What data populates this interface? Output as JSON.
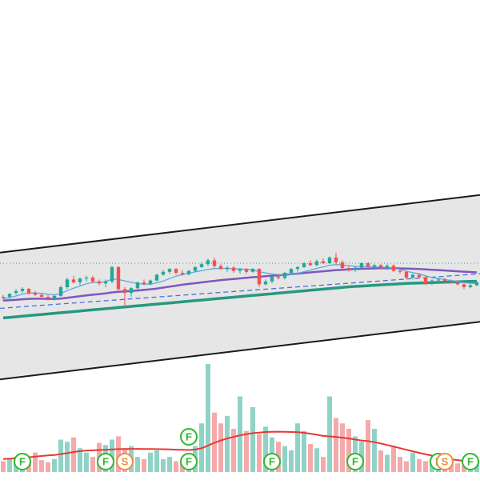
{
  "colors": {
    "background": "#ffffff",
    "channel_fill": "#e6e6e6",
    "channel_border": "#1a1a1a",
    "bull": "#26a69a",
    "bear": "#ef5350",
    "bull_volume": "#8fd3c6",
    "bear_volume": "#f5a9ab",
    "ma_fast": "#5aa9e6",
    "ma_mid": "#7e57c2",
    "ma_slow": "#26997f",
    "trend_dashed": "#4a6fe0",
    "price_line": "#26a69a",
    "volume_ma": "#e53935",
    "marker_f": "#2eb82e",
    "marker_s": "#f08c3a"
  },
  "icons": {
    "marker_f": "circle-letter-icon",
    "marker_s": "circle-letter-icon"
  },
  "chart_data": {
    "type": "candlestick",
    "title": "",
    "xlabel": "",
    "ylabel": "",
    "grid": false,
    "legend": "none",
    "ylim": [
      0,
      100
    ],
    "volume_ylim": [
      0,
      100
    ],
    "candles": [
      {
        "o": 35,
        "h": 36,
        "l": 33,
        "c": 34.5
      },
      {
        "o": 35,
        "h": 37,
        "l": 34,
        "c": 36.5
      },
      {
        "o": 37,
        "h": 39,
        "l": 36,
        "c": 38
      },
      {
        "o": 38,
        "h": 40,
        "l": 37,
        "c": 39.2
      },
      {
        "o": 39.2,
        "h": 39.5,
        "l": 36,
        "c": 36.8
      },
      {
        "o": 37,
        "h": 38,
        "l": 35.5,
        "c": 36
      },
      {
        "o": 36,
        "h": 37,
        "l": 34.5,
        "c": 35
      },
      {
        "o": 35,
        "h": 36,
        "l": 33,
        "c": 34
      },
      {
        "o": 34,
        "h": 36,
        "l": 33,
        "c": 35.5
      },
      {
        "o": 35.5,
        "h": 41,
        "l": 35,
        "c": 40
      },
      {
        "o": 40,
        "h": 45,
        "l": 39,
        "c": 44
      },
      {
        "o": 44,
        "h": 46,
        "l": 42,
        "c": 42.5
      },
      {
        "o": 42.5,
        "h": 45,
        "l": 41,
        "c": 44.5
      },
      {
        "o": 44.5,
        "h": 46,
        "l": 43,
        "c": 45
      },
      {
        "o": 45,
        "h": 46,
        "l": 42,
        "c": 43
      },
      {
        "o": 43,
        "h": 44,
        "l": 41,
        "c": 42
      },
      {
        "o": 42,
        "h": 44,
        "l": 40,
        "c": 43
      },
      {
        "o": 43,
        "h": 51,
        "l": 42,
        "c": 50.5
      },
      {
        "o": 50.5,
        "h": 51,
        "l": 38,
        "c": 39
      },
      {
        "o": 39,
        "h": 40,
        "l": 30,
        "c": 37
      },
      {
        "o": 37,
        "h": 40,
        "l": 35,
        "c": 39.5
      },
      {
        "o": 39.5,
        "h": 43,
        "l": 38,
        "c": 42.5
      },
      {
        "o": 42.5,
        "h": 44,
        "l": 41,
        "c": 41.8
      },
      {
        "o": 41.8,
        "h": 44,
        "l": 41,
        "c": 43.5
      },
      {
        "o": 43.5,
        "h": 47,
        "l": 43,
        "c": 46.5
      },
      {
        "o": 46.5,
        "h": 49,
        "l": 46,
        "c": 48
      },
      {
        "o": 48,
        "h": 50,
        "l": 47,
        "c": 49.5
      },
      {
        "o": 49.5,
        "h": 50,
        "l": 46.5,
        "c": 47.5
      },
      {
        "o": 47.5,
        "h": 49,
        "l": 46,
        "c": 46.8
      },
      {
        "o": 46.8,
        "h": 49,
        "l": 46,
        "c": 48.5
      },
      {
        "o": 48.5,
        "h": 51,
        "l": 48,
        "c": 50.5
      },
      {
        "o": 50.5,
        "h": 53,
        "l": 50,
        "c": 52
      },
      {
        "o": 52,
        "h": 55,
        "l": 51,
        "c": 54
      },
      {
        "o": 54,
        "h": 55.5,
        "l": 50,
        "c": 51
      },
      {
        "o": 51,
        "h": 52,
        "l": 49,
        "c": 49.5
      },
      {
        "o": 49.5,
        "h": 51,
        "l": 48,
        "c": 50.2
      },
      {
        "o": 50.2,
        "h": 51,
        "l": 47.5,
        "c": 48.5
      },
      {
        "o": 48.5,
        "h": 50,
        "l": 47,
        "c": 49.2
      },
      {
        "o": 49.2,
        "h": 50,
        "l": 47,
        "c": 48
      },
      {
        "o": 48,
        "h": 50,
        "l": 47.5,
        "c": 49.5
      },
      {
        "o": 49.5,
        "h": 50,
        "l": 40,
        "c": 41.5
      },
      {
        "o": 41.5,
        "h": 44,
        "l": 41,
        "c": 43
      },
      {
        "o": 43,
        "h": 46,
        "l": 42,
        "c": 45.5
      },
      {
        "o": 45.5,
        "h": 47,
        "l": 44,
        "c": 44.8
      },
      {
        "o": 44.8,
        "h": 48,
        "l": 44,
        "c": 47.5
      },
      {
        "o": 47.5,
        "h": 50,
        "l": 47,
        "c": 49.5
      },
      {
        "o": 49.5,
        "h": 51,
        "l": 48,
        "c": 50.5
      },
      {
        "o": 50.5,
        "h": 53,
        "l": 50,
        "c": 52.5
      },
      {
        "o": 52.5,
        "h": 54,
        "l": 51,
        "c": 51.5
      },
      {
        "o": 51.5,
        "h": 54.5,
        "l": 51,
        "c": 53.5
      },
      {
        "o": 53.5,
        "h": 55,
        "l": 52,
        "c": 52.5
      },
      {
        "o": 52.5,
        "h": 56,
        "l": 52,
        "c": 55.5
      },
      {
        "o": 55.5,
        "h": 58,
        "l": 52,
        "c": 53
      },
      {
        "o": 53,
        "h": 54,
        "l": 49,
        "c": 50
      },
      {
        "o": 50,
        "h": 51,
        "l": 48,
        "c": 49
      },
      {
        "o": 49,
        "h": 51,
        "l": 48,
        "c": 50.2
      },
      {
        "o": 50.2,
        "h": 53,
        "l": 49.5,
        "c": 52.5
      },
      {
        "o": 52.5,
        "h": 53,
        "l": 50,
        "c": 50.8
      },
      {
        "o": 50.8,
        "h": 52,
        "l": 50,
        "c": 51.5
      },
      {
        "o": 51.5,
        "h": 52,
        "l": 49.5,
        "c": 50.2
      },
      {
        "o": 50.2,
        "h": 52,
        "l": 49,
        "c": 51.2
      },
      {
        "o": 51.2,
        "h": 52,
        "l": 48,
        "c": 48.5
      },
      {
        "o": 48.5,
        "h": 50,
        "l": 47,
        "c": 48
      },
      {
        "o": 48,
        "h": 48.5,
        "l": 44,
        "c": 45
      },
      {
        "o": 45,
        "h": 47,
        "l": 44,
        "c": 46.5
      },
      {
        "o": 46.5,
        "h": 47,
        "l": 44.5,
        "c": 45.2
      },
      {
        "o": 45.2,
        "h": 46,
        "l": 41,
        "c": 42
      },
      {
        "o": 42,
        "h": 44,
        "l": 41,
        "c": 43.5
      },
      {
        "o": 43.5,
        "h": 45,
        "l": 43,
        "c": 44
      },
      {
        "o": 44,
        "h": 45,
        "l": 42.5,
        "c": 43.2
      },
      {
        "o": 43.2,
        "h": 44,
        "l": 42,
        "c": 42.5
      },
      {
        "o": 42.5,
        "h": 43,
        "l": 41,
        "c": 41.5
      },
      {
        "o": 41.5,
        "h": 42,
        "l": 39,
        "c": 40
      },
      {
        "o": 40,
        "h": 41.5,
        "l": 39.5,
        "c": 41
      },
      {
        "o": 41,
        "h": 43,
        "l": 40.5,
        "c": 42.5
      }
    ],
    "ma_fast": [
      34,
      34.6,
      35.4,
      36.4,
      36.9,
      37,
      36.8,
      36.3,
      36,
      36.7,
      38.2,
      39.5,
      40.6,
      41.8,
      42.5,
      42.6,
      42.9,
      44.2,
      44,
      43.3,
      42.5,
      41.9,
      41.6,
      41.6,
      42.3,
      43.2,
      44.5,
      45.7,
      46.6,
      47.2,
      48,
      48.6,
      49.2,
      49.7,
      49.8,
      49.7,
      49.6,
      49.5,
      49.3,
      49.1,
      48.1,
      47.4,
      46.9,
      46.5,
      46.3,
      46.6,
      47.2,
      48.1,
      48.9,
      49.8,
      50.6,
      51.4,
      51.8,
      51.6,
      51.2,
      50.9,
      50.8,
      50.7,
      50.6,
      50.4,
      50.3,
      49.8,
      49.3,
      48.3,
      47.6,
      47,
      45.9,
      45,
      44.5,
      44,
      43.5,
      43,
      42.4,
      42,
      41.9
    ],
    "ma_mid": [
      33,
      33.2,
      33.4,
      33.7,
      33.9,
      34,
      34,
      33.9,
      33.9,
      34.1,
      34.5,
      34.9,
      35.3,
      35.7,
      36.1,
      36.4,
      36.8,
      37.3,
      37.6,
      37.8,
      38,
      38.3,
      38.6,
      38.9,
      39.3,
      39.8,
      40.3,
      40.8,
      41.3,
      41.7,
      42.1,
      42.5,
      42.9,
      43.3,
      43.7,
      44,
      44.3,
      44.6,
      44.9,
      45.2,
      45.4,
      45.7,
      46,
      46.2,
      46.5,
      46.8,
      47.1,
      47.4,
      47.7,
      48,
      48.3,
      48.6,
      48.9,
      49.1,
      49.3,
      49.5,
      49.6,
      49.7,
      49.8,
      49.9,
      49.9,
      49.9,
      49.8,
      49.7,
      49.6,
      49.5,
      49.3,
      49.1,
      48.9,
      48.7,
      48.5,
      48.3,
      48.1,
      47.9,
      47.7
    ],
    "ma_slow": [
      24,
      24.3,
      24.6,
      24.9,
      25.2,
      25.5,
      25.8,
      26.1,
      26.4,
      26.7,
      27,
      27.3,
      27.6,
      27.9,
      28.2,
      28.5,
      28.8,
      29.1,
      29.4,
      29.7,
      30,
      30.3,
      30.6,
      30.9,
      31.2,
      31.5,
      31.8,
      32.1,
      32.4,
      32.7,
      33,
      33.3,
      33.6,
      33.9,
      34.2,
      34.5,
      34.8,
      35.1,
      35.4,
      35.7,
      36,
      36.3,
      36.6,
      36.9,
      37.2,
      37.5,
      37.8,
      38.1,
      38.4,
      38.7,
      39,
      39.3,
      39.6,
      39.9,
      40.2,
      40.4,
      40.6,
      40.8,
      41,
      41.2,
      41.4,
      41.6,
      41.8,
      42,
      42.1,
      42.2,
      42.3,
      42.4,
      42.5,
      42.6,
      42.7,
      42.8,
      42.9,
      43,
      43.1
    ],
    "trend_line": {
      "from": 29,
      "to": 47
    },
    "price_line": 52.5,
    "channel": {
      "upper_from": 58,
      "upper_to": 88,
      "lower_from": -8,
      "lower_to": 22
    },
    "volume": [
      10,
      12,
      14,
      8,
      10,
      18,
      11,
      9,
      12,
      30,
      28,
      32,
      22,
      18,
      14,
      27,
      25,
      30,
      33,
      22,
      24,
      14,
      12,
      18,
      20,
      12,
      14,
      10,
      9,
      16,
      24,
      45,
      100,
      55,
      45,
      52,
      40,
      70,
      38,
      60,
      35,
      42,
      32,
      28,
      24,
      20,
      45,
      38,
      26,
      22,
      14,
      70,
      50,
      45,
      40,
      33,
      28,
      48,
      40,
      20,
      16,
      24,
      14,
      10,
      18,
      12,
      10,
      12,
      8,
      6,
      9,
      8,
      6,
      7,
      10
    ],
    "volume_ma": [
      12,
      12.3,
      12.7,
      13.1,
      13.6,
      14.2,
      14.8,
      15.3,
      15.8,
      16.6,
      17.5,
      18.5,
      19.3,
      19.8,
      20.1,
      20.4,
      20.6,
      20.9,
      21.2,
      21.3,
      21.4,
      21.4,
      21.3,
      21.3,
      21.2,
      21.1,
      20.9,
      20.7,
      20.5,
      20.4,
      20.8,
      22,
      24.5,
      27,
      29.2,
      31,
      32.5,
      34,
      35,
      36,
      36.5,
      37,
      37.2,
      37.3,
      37.2,
      37,
      36.8,
      36.3,
      35.5,
      34.5,
      33.4,
      33,
      32.5,
      31.8,
      31,
      30.1,
      29.2,
      28.6,
      27.6,
      26.4,
      25,
      23.6,
      22.1,
      20.6,
      19.2,
      17.8,
      16.4,
      15.2,
      14,
      12.8,
      11.8,
      11,
      10.3,
      9.9,
      9.6
    ],
    "markers": [
      {
        "index": 3,
        "label": "F",
        "row": "bottom"
      },
      {
        "index": 16,
        "label": "F",
        "row": "bottom"
      },
      {
        "index": 19,
        "label": "S",
        "row": "bottom"
      },
      {
        "index": 29,
        "label": "F",
        "row": "upper"
      },
      {
        "index": 29,
        "label": "F",
        "row": "bottom"
      },
      {
        "index": 42,
        "label": "F",
        "row": "bottom"
      },
      {
        "index": 55,
        "label": "F",
        "row": "bottom"
      },
      {
        "index": 68,
        "label": "F",
        "row": "bottom"
      },
      {
        "index": 69,
        "label": "S",
        "row": "bottom"
      },
      {
        "index": 73,
        "label": "F",
        "row": "bottom"
      }
    ]
  }
}
